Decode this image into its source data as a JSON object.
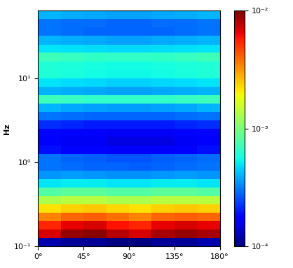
{
  "chart_data": {
    "type": "heatmap",
    "y_label": "Hz",
    "log": "y",
    "x_edges": [
      0,
      22.5,
      45,
      67.5,
      90,
      112.5,
      135,
      157.5,
      180
    ],
    "y_edges": [
      0.1,
      0.126,
      0.158,
      0.2,
      0.251,
      0.316,
      0.398,
      0.501,
      0.631,
      0.794,
      1,
      1.26,
      1.58,
      2,
      2.51,
      3.16,
      3.98,
      5.01,
      6.31,
      7.94,
      10,
      12.6,
      15.8,
      20,
      25.1,
      31.6,
      39.8,
      50.1,
      63.1
    ],
    "xlim": [
      0,
      180
    ],
    "xticks": [
      {
        "value": 0,
        "label": "0°"
      },
      {
        "value": 45,
        "label": "45°"
      },
      {
        "value": 90,
        "label": "90°"
      },
      {
        "value": 135,
        "label": "135°"
      },
      {
        "value": 180,
        "label": "180°"
      }
    ],
    "ylim": [
      0.1,
      63.1
    ],
    "yticks": [
      {
        "value": 0.1,
        "label": "10⁻¹"
      },
      {
        "value": 1,
        "label": "10⁰"
      },
      {
        "value": 10,
        "label": "10¹"
      }
    ],
    "cells": [
      [
        0.00012,
        0.00011,
        0.00011,
        0.0001,
        0.0001,
        0.00011,
        0.00011,
        0.00012
      ],
      [
        0.007,
        0.009,
        0.0095,
        0.008,
        0.007,
        0.0085,
        0.009,
        0.0085
      ],
      [
        0.0055,
        0.0065,
        0.007,
        0.006,
        0.0055,
        0.0065,
        0.007,
        0.0065
      ],
      [
        0.0035,
        0.004,
        0.0042,
        0.0038,
        0.0035,
        0.004,
        0.0042,
        0.004
      ],
      [
        0.0022,
        0.0024,
        0.0025,
        0.0023,
        0.0022,
        0.0024,
        0.0025,
        0.0024
      ],
      [
        0.0013,
        0.0014,
        0.0014,
        0.0013,
        0.0013,
        0.0014,
        0.0014,
        0.0014
      ],
      [
        0.0008,
        0.00085,
        0.00085,
        0.0008,
        0.0008,
        0.00085,
        0.00085,
        0.0008
      ],
      [
        0.0005,
        0.00052,
        0.00052,
        0.0005,
        0.0005,
        0.00052,
        0.00052,
        0.0005
      ],
      [
        0.00035,
        0.00036,
        0.00035,
        0.00034,
        0.00034,
        0.00035,
        0.00036,
        0.00035
      ],
      [
        0.0003,
        0.00029,
        0.00028,
        0.00028,
        0.00027,
        0.00028,
        0.00029,
        0.0003
      ],
      [
        0.0003,
        0.00028,
        0.00027,
        0.00026,
        0.00026,
        0.00027,
        0.00028,
        0.00029
      ],
      [
        0.00019,
        0.00018,
        0.00018,
        0.00017,
        0.00017,
        0.00017,
        0.00018,
        0.00019
      ],
      [
        0.00017,
        0.00016,
        0.00016,
        0.00015,
        0.00015,
        0.00015,
        0.00016,
        0.00017
      ],
      [
        0.00018,
        0.00017,
        0.00017,
        0.00016,
        0.00016,
        0.00016,
        0.00017,
        0.00018
      ],
      [
        0.00022,
        0.00021,
        0.0002,
        0.0002,
        0.0002,
        0.0002,
        0.00021,
        0.00022
      ],
      [
        0.0003,
        0.00029,
        0.00028,
        0.00028,
        0.00028,
        0.00028,
        0.00029,
        0.0003
      ],
      [
        0.0004,
        0.00038,
        0.00037,
        0.00036,
        0.00036,
        0.00037,
        0.00038,
        0.0004
      ],
      [
        0.0007,
        0.00068,
        0.00066,
        0.00065,
        0.00065,
        0.00066,
        0.00068,
        0.0007
      ],
      [
        0.0004,
        0.00039,
        0.00038,
        0.00037,
        0.00037,
        0.00038,
        0.00039,
        0.0004
      ],
      [
        0.0005,
        0.00048,
        0.00047,
        0.00046,
        0.00046,
        0.00047,
        0.00048,
        0.0005
      ],
      [
        0.0006,
        0.00058,
        0.00056,
        0.00055,
        0.00055,
        0.00056,
        0.00058,
        0.0006
      ],
      [
        0.0006,
        0.00059,
        0.00057,
        0.00056,
        0.00056,
        0.00057,
        0.00059,
        0.0006
      ],
      [
        0.0007,
        0.00068,
        0.00066,
        0.00065,
        0.00065,
        0.00066,
        0.00068,
        0.0007
      ],
      [
        0.0005,
        0.00049,
        0.00048,
        0.00047,
        0.00047,
        0.00048,
        0.00049,
        0.0005
      ],
      [
        0.0004,
        0.00039,
        0.00038,
        0.00037,
        0.00037,
        0.00038,
        0.00039,
        0.0004
      ],
      [
        0.0003,
        0.00029,
        0.00028,
        0.00028,
        0.00028,
        0.00028,
        0.00029,
        0.0003
      ],
      [
        0.0003,
        0.00029,
        0.00029,
        0.00028,
        0.00028,
        0.00029,
        0.00029,
        0.0003
      ],
      [
        0.0004,
        0.00039,
        0.00038,
        0.00037,
        0.00037,
        0.00038,
        0.00039,
        0.0004
      ]
    ],
    "colorbar": {
      "range": [
        0.0001,
        0.01
      ],
      "ticks": [
        {
          "value": 0.0001,
          "label": "10⁻⁴"
        },
        {
          "value": 0.001,
          "label": "10⁻³"
        },
        {
          "value": 0.01,
          "label": "10⁻²"
        }
      ]
    }
  }
}
